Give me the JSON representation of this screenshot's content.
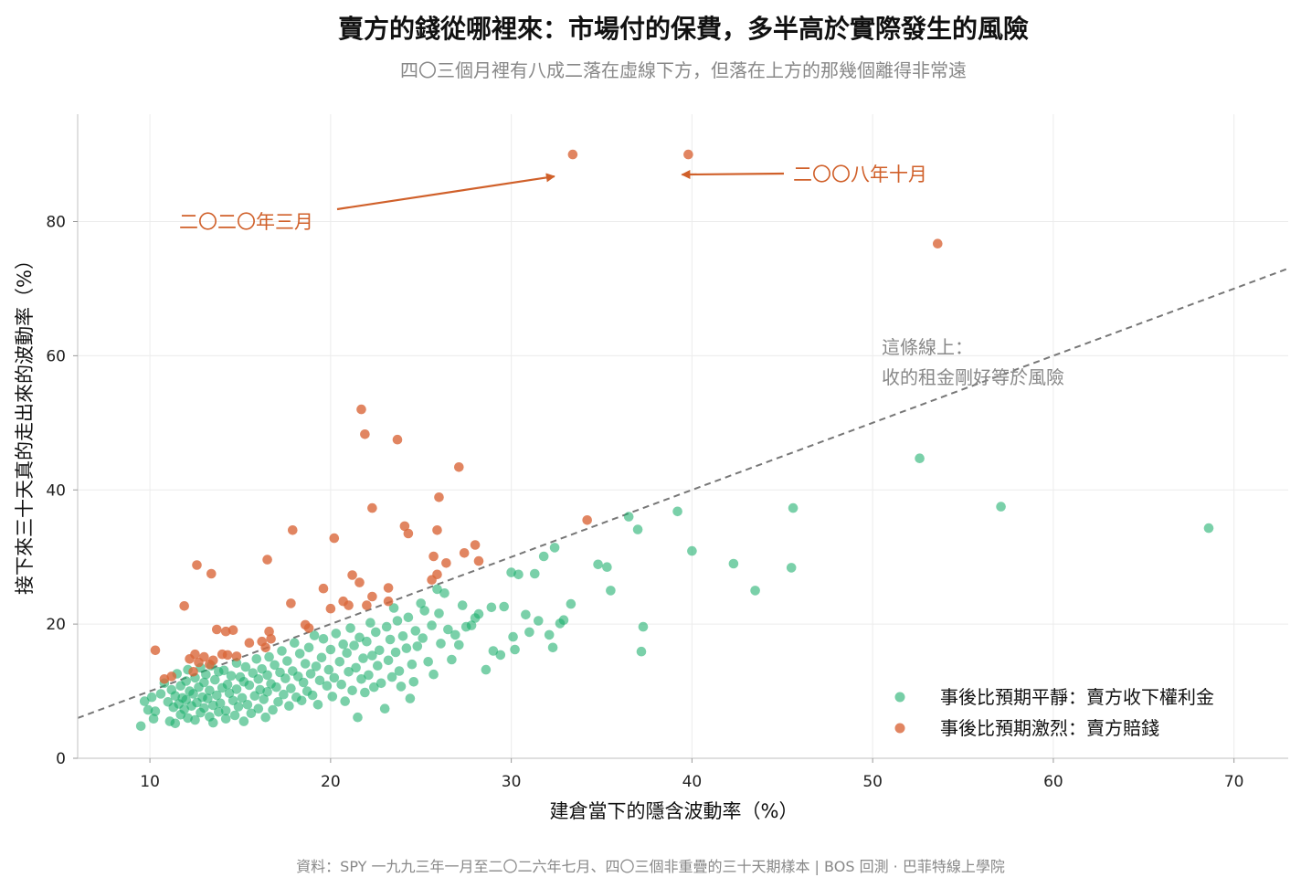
{
  "header": {
    "title": "賣方的錢從哪裡來：市場付的保費，多半高於實際發生的風險",
    "subtitle": "四〇三個月裡有八成二落在虛線下方，但落在上方的那幾個離得非常遠"
  },
  "footer": {
    "source": "資料：SPY 一九九三年一月至二〇二六年七月、四〇三個非重疊的三十天期樣本 | BOS 回測 · 巴菲特線上學院"
  },
  "chart_data": {
    "type": "scatter",
    "title": "賣方的錢從哪裡來：市場付的保費，多半高於實際發生的風險",
    "subtitle": "四〇三個月裡有八成二落在虛線下方，但落在上方的那幾個離得非常遠",
    "xlabel": "建倉當下的隱含波動率（%）",
    "ylabel": "接下來三十天真的走出來的波動率（%）",
    "xlim": [
      6,
      73
    ],
    "ylim": [
      0,
      96
    ],
    "xticks": [
      10,
      20,
      30,
      40,
      50,
      60,
      70
    ],
    "yticks": [
      0,
      20,
      40,
      60,
      80
    ],
    "grid": true,
    "legend_position": "bottom-right",
    "colors": {
      "calm": "#1aae6a",
      "violent": "#d9663a",
      "reference_line": "#777777",
      "annotation": "#d0602a"
    },
    "reference_line": {
      "slope": 1,
      "intercept": 0,
      "label_line1": "這條線上：",
      "label_line2": "收的租金剛好等於風險"
    },
    "annotations": [
      {
        "text": "二〇二〇年三月",
        "point": [
          33.4,
          90
        ]
      },
      {
        "text": "二〇〇八年十月",
        "point": [
          39.8,
          90
        ]
      }
    ],
    "series": [
      {
        "name": "事後比預期平靜：賣方收下權利金",
        "color": "#1aae6a",
        "points": [
          [
            9.5,
            4.8
          ],
          [
            9.7,
            8.5
          ],
          [
            9.9,
            7.2
          ],
          [
            10.1,
            9.1
          ],
          [
            10.2,
            5.9
          ],
          [
            10.3,
            7.0
          ],
          [
            10.6,
            9.6
          ],
          [
            10.8,
            11.2
          ],
          [
            11.0,
            8.4
          ],
          [
            11.1,
            5.5
          ],
          [
            11.2,
            10.2
          ],
          [
            11.3,
            7.6
          ],
          [
            11.4,
            9.3
          ],
          [
            11.4,
            5.2
          ],
          [
            11.5,
            12.6
          ],
          [
            11.6,
            8.1
          ],
          [
            11.7,
            10.8
          ],
          [
            11.7,
            6.5
          ],
          [
            11.8,
            9.0
          ],
          [
            11.9,
            7.3
          ],
          [
            12.0,
            11.5
          ],
          [
            12.0,
            8.7
          ],
          [
            12.1,
            13.2
          ],
          [
            12.1,
            6.0
          ],
          [
            12.2,
            10.0
          ],
          [
            12.3,
            7.8
          ],
          [
            12.4,
            9.6
          ],
          [
            12.5,
            12.0
          ],
          [
            12.5,
            5.7
          ],
          [
            12.6,
            8.3
          ],
          [
            12.7,
            10.6
          ],
          [
            12.8,
            6.8
          ],
          [
            12.8,
            13.5
          ],
          [
            12.9,
            9.1
          ],
          [
            13.0,
            7.5
          ],
          [
            13.0,
            11.3
          ],
          [
            13.1,
            12.5
          ],
          [
            13.2,
            8.9
          ],
          [
            13.3,
            6.2
          ],
          [
            13.3,
            10.1
          ],
          [
            13.4,
            13.8
          ],
          [
            13.5,
            7.9
          ],
          [
            13.5,
            5.3
          ],
          [
            13.6,
            11.7
          ],
          [
            13.7,
            9.4
          ],
          [
            13.8,
            12.9
          ],
          [
            13.8,
            6.9
          ],
          [
            13.9,
            8.2
          ],
          [
            14.0,
            10.5
          ],
          [
            14.1,
            13.1
          ],
          [
            14.2,
            7.1
          ],
          [
            14.2,
            5.9
          ],
          [
            14.3,
            11.0
          ],
          [
            14.4,
            9.7
          ],
          [
            14.5,
            12.3
          ],
          [
            14.6,
            8.6
          ],
          [
            14.7,
            6.4
          ],
          [
            14.8,
            14.2
          ],
          [
            14.8,
            10.3
          ],
          [
            14.9,
            7.7
          ],
          [
            15.0,
            12.1
          ],
          [
            15.1,
            9.0
          ],
          [
            15.2,
            5.5
          ],
          [
            15.2,
            11.4
          ],
          [
            15.3,
            13.6
          ],
          [
            15.4,
            8.0
          ],
          [
            15.5,
            10.9
          ],
          [
            15.6,
            6.7
          ],
          [
            15.7,
            12.7
          ],
          [
            15.8,
            9.3
          ],
          [
            15.9,
            14.8
          ],
          [
            16.0,
            7.4
          ],
          [
            16.0,
            11.8
          ],
          [
            16.1,
            10.2
          ],
          [
            16.2,
            13.3
          ],
          [
            16.3,
            8.8
          ],
          [
            16.4,
            6.1
          ],
          [
            16.5,
            12.4
          ],
          [
            16.5,
            9.9
          ],
          [
            16.6,
            15.1
          ],
          [
            16.7,
            11.1
          ],
          [
            16.8,
            7.2
          ],
          [
            16.9,
            13.9
          ],
          [
            17.0,
            10.6
          ],
          [
            17.1,
            8.4
          ],
          [
            17.2,
            12.8
          ],
          [
            17.3,
            16.0
          ],
          [
            17.4,
            9.5
          ],
          [
            17.5,
            11.9
          ],
          [
            17.6,
            14.5
          ],
          [
            17.7,
            7.8
          ],
          [
            17.8,
            10.4
          ],
          [
            17.9,
            13.0
          ],
          [
            18.0,
            17.2
          ],
          [
            18.1,
            9.1
          ],
          [
            18.2,
            12.2
          ],
          [
            18.3,
            15.6
          ],
          [
            18.4,
            8.6
          ],
          [
            18.5,
            11.3
          ],
          [
            18.6,
            14.1
          ],
          [
            18.7,
            10.0
          ],
          [
            18.8,
            16.5
          ],
          [
            18.9,
            12.6
          ],
          [
            19.0,
            9.4
          ],
          [
            19.1,
            18.3
          ],
          [
            19.2,
            13.7
          ],
          [
            19.3,
            8.0
          ],
          [
            19.4,
            11.6
          ],
          [
            19.5,
            15.0
          ],
          [
            19.6,
            17.8
          ],
          [
            19.8,
            10.8
          ],
          [
            19.9,
            13.2
          ],
          [
            20.0,
            16.2
          ],
          [
            20.1,
            9.2
          ],
          [
            20.2,
            12.0
          ],
          [
            20.3,
            18.6
          ],
          [
            20.5,
            14.4
          ],
          [
            20.6,
            11.0
          ],
          [
            20.7,
            17.0
          ],
          [
            20.8,
            8.5
          ],
          [
            20.9,
            15.7
          ],
          [
            21.0,
            12.9
          ],
          [
            21.1,
            19.4
          ],
          [
            21.2,
            10.1
          ],
          [
            21.3,
            16.8
          ],
          [
            21.4,
            13.5
          ],
          [
            21.5,
            6.1
          ],
          [
            21.6,
            18.0
          ],
          [
            21.7,
            11.8
          ],
          [
            21.8,
            14.9
          ],
          [
            21.9,
            9.8
          ],
          [
            22.0,
            17.4
          ],
          [
            22.1,
            12.4
          ],
          [
            22.2,
            20.2
          ],
          [
            22.3,
            15.3
          ],
          [
            22.4,
            10.6
          ],
          [
            22.5,
            18.8
          ],
          [
            22.6,
            13.8
          ],
          [
            22.7,
            16.1
          ],
          [
            22.8,
            11.2
          ],
          [
            23.0,
            7.4
          ],
          [
            23.1,
            19.6
          ],
          [
            23.2,
            14.6
          ],
          [
            23.3,
            17.7
          ],
          [
            23.4,
            12.1
          ],
          [
            23.5,
            22.4
          ],
          [
            23.6,
            15.8
          ],
          [
            23.7,
            20.5
          ],
          [
            23.8,
            13.0
          ],
          [
            23.9,
            10.7
          ],
          [
            24.0,
            18.2
          ],
          [
            24.2,
            16.4
          ],
          [
            24.3,
            21.0
          ],
          [
            24.4,
            8.9
          ],
          [
            24.5,
            14.0
          ],
          [
            24.6,
            11.4
          ],
          [
            24.7,
            19.0
          ],
          [
            24.8,
            16.7
          ],
          [
            25.0,
            23.1
          ],
          [
            25.1,
            17.9
          ],
          [
            25.2,
            22.0
          ],
          [
            25.4,
            14.4
          ],
          [
            25.6,
            19.8
          ],
          [
            25.7,
            12.5
          ],
          [
            25.9,
            25.2
          ],
          [
            26.0,
            21.6
          ],
          [
            26.1,
            17.1
          ],
          [
            26.3,
            24.6
          ],
          [
            26.5,
            19.2
          ],
          [
            26.7,
            14.7
          ],
          [
            26.9,
            18.4
          ],
          [
            27.1,
            16.9
          ],
          [
            27.3,
            22.8
          ],
          [
            27.5,
            19.6
          ],
          [
            27.8,
            19.8
          ],
          [
            28.0,
            20.9
          ],
          [
            28.2,
            21.5
          ],
          [
            28.6,
            13.2
          ],
          [
            28.9,
            22.5
          ],
          [
            29.0,
            16.0
          ],
          [
            29.4,
            15.4
          ],
          [
            29.6,
            22.6
          ],
          [
            30.0,
            27.7
          ],
          [
            30.1,
            18.1
          ],
          [
            30.2,
            16.2
          ],
          [
            30.4,
            27.4
          ],
          [
            30.8,
            21.4
          ],
          [
            31.0,
            18.8
          ],
          [
            31.3,
            27.5
          ],
          [
            31.5,
            20.5
          ],
          [
            31.8,
            30.1
          ],
          [
            32.1,
            18.4
          ],
          [
            32.3,
            16.5
          ],
          [
            32.4,
            31.4
          ],
          [
            32.7,
            20.1
          ],
          [
            32.9,
            20.6
          ],
          [
            33.3,
            23.0
          ],
          [
            34.8,
            28.9
          ],
          [
            35.3,
            28.5
          ],
          [
            35.5,
            25.0
          ],
          [
            36.5,
            36.0
          ],
          [
            37.0,
            34.1
          ],
          [
            37.2,
            15.9
          ],
          [
            37.3,
            19.6
          ],
          [
            39.2,
            36.8
          ],
          [
            40.0,
            30.9
          ],
          [
            42.3,
            29.0
          ],
          [
            43.5,
            25.0
          ],
          [
            45.5,
            28.4
          ],
          [
            45.6,
            37.3
          ],
          [
            52.6,
            44.7
          ],
          [
            57.1,
            37.5
          ],
          [
            68.6,
            34.3
          ]
        ]
      },
      {
        "name": "事後比預期激烈：賣方賠錢",
        "color": "#d9663a",
        "points": [
          [
            10.3,
            16.1
          ],
          [
            10.8,
            11.8
          ],
          [
            11.2,
            12.2
          ],
          [
            11.9,
            22.7
          ],
          [
            12.2,
            14.8
          ],
          [
            12.4,
            12.9
          ],
          [
            12.5,
            15.5
          ],
          [
            12.6,
            28.8
          ],
          [
            12.7,
            14.3
          ],
          [
            13.0,
            15.1
          ],
          [
            13.3,
            14.0
          ],
          [
            13.4,
            27.5
          ],
          [
            13.5,
            14.6
          ],
          [
            13.7,
            19.2
          ],
          [
            14.0,
            15.5
          ],
          [
            14.2,
            18.9
          ],
          [
            14.3,
            15.4
          ],
          [
            14.6,
            19.1
          ],
          [
            14.8,
            15.2
          ],
          [
            15.5,
            17.2
          ],
          [
            16.2,
            17.4
          ],
          [
            16.4,
            16.5
          ],
          [
            16.5,
            29.6
          ],
          [
            16.6,
            18.9
          ],
          [
            16.7,
            17.8
          ],
          [
            17.8,
            23.1
          ],
          [
            17.9,
            34.0
          ],
          [
            18.6,
            19.9
          ],
          [
            18.8,
            19.4
          ],
          [
            19.6,
            25.3
          ],
          [
            20.0,
            22.3
          ],
          [
            20.2,
            32.8
          ],
          [
            20.7,
            23.4
          ],
          [
            21.0,
            22.8
          ],
          [
            21.2,
            27.3
          ],
          [
            21.6,
            26.2
          ],
          [
            21.7,
            52.0
          ],
          [
            21.9,
            48.3
          ],
          [
            22.0,
            22.8
          ],
          [
            22.3,
            37.3
          ],
          [
            22.3,
            24.1
          ],
          [
            23.2,
            25.4
          ],
          [
            23.2,
            23.4
          ],
          [
            23.7,
            47.5
          ],
          [
            24.1,
            34.6
          ],
          [
            24.3,
            33.5
          ],
          [
            25.6,
            26.6
          ],
          [
            25.7,
            30.1
          ],
          [
            25.9,
            27.4
          ],
          [
            25.9,
            34.0
          ],
          [
            26.0,
            38.9
          ],
          [
            26.4,
            29.1
          ],
          [
            27.1,
            43.4
          ],
          [
            27.4,
            30.6
          ],
          [
            28.0,
            31.8
          ],
          [
            28.2,
            29.4
          ],
          [
            34.2,
            35.5
          ],
          [
            33.4,
            90.0
          ],
          [
            39.8,
            90.0
          ],
          [
            53.6,
            76.7
          ]
        ]
      }
    ]
  }
}
